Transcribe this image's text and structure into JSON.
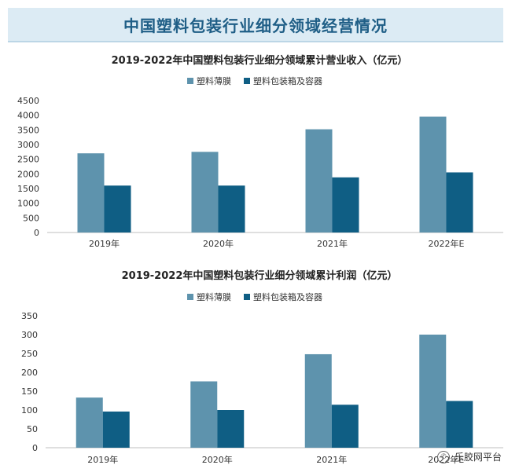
{
  "header": {
    "title": "中国塑料包装行业细分领域经营情况"
  },
  "colors": {
    "film": "#5e93ad",
    "container": "#0f5e84",
    "banner": "#dcebf4",
    "title": "#1f5e86"
  },
  "watermark": {
    "icon": "wechat-icon",
    "text": "乐胶网平台"
  },
  "chart_data": [
    {
      "type": "bar",
      "title": "2019-2022年中国塑料包装行业细分领域累计营业收入（亿元）",
      "categories": [
        "2019年",
        "2020年",
        "2021年",
        "2022年E"
      ],
      "series": [
        {
          "name": "塑料薄膜",
          "values": [
            2700,
            2750,
            3520,
            3950
          ]
        },
        {
          "name": "塑料包装箱及容器",
          "values": [
            1600,
            1600,
            1880,
            2050
          ]
        }
      ],
      "ylim": [
        0,
        4500
      ],
      "yticks": [
        0,
        500,
        1000,
        1500,
        2000,
        2500,
        3000,
        3500,
        4000,
        4500
      ],
      "legend": "top",
      "grid": false
    },
    {
      "type": "bar",
      "title": "2019-2022年中国塑料包装行业细分领域累计利润（亿元）",
      "categories": [
        "2019年",
        "2020年",
        "2021年",
        "2022年E"
      ],
      "series": [
        {
          "name": "塑料薄膜",
          "values": [
            133,
            176,
            248,
            300
          ]
        },
        {
          "name": "塑料包装箱及容器",
          "values": [
            96,
            100,
            114,
            124
          ]
        }
      ],
      "ylim": [
        0,
        350
      ],
      "yticks": [
        0,
        50,
        100,
        150,
        200,
        250,
        300,
        350
      ],
      "legend": "top",
      "grid": false
    }
  ]
}
